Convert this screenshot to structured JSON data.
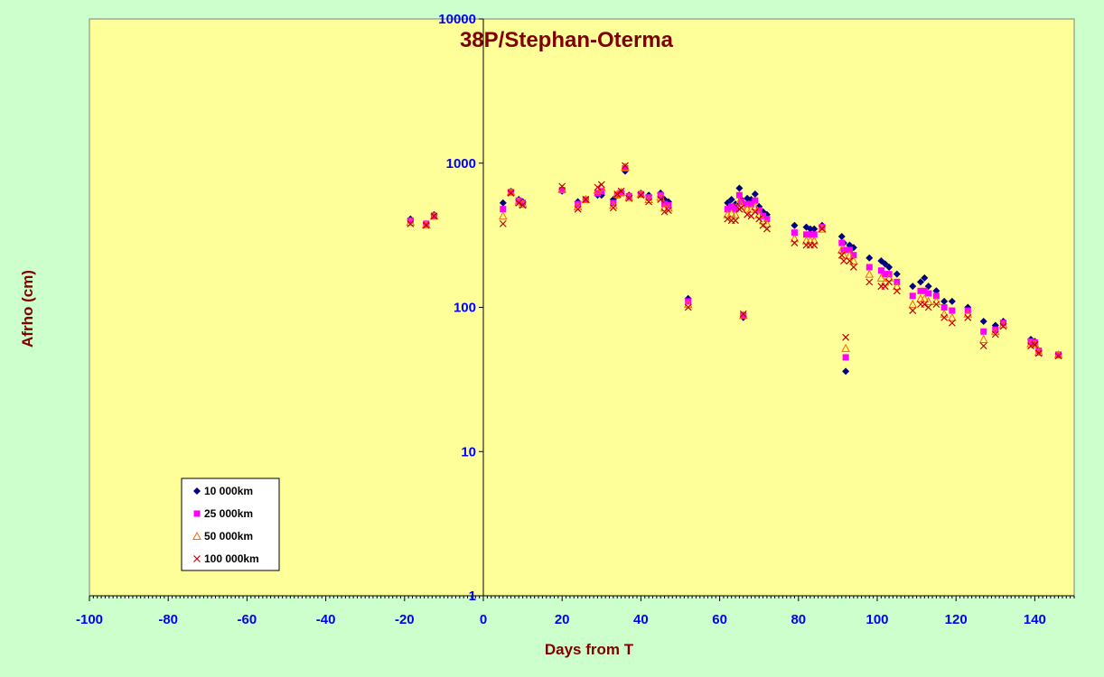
{
  "colors": {
    "page_bg": "#ccffcc",
    "plot_bg": "#ffff99",
    "axis_text": "#0000ff",
    "title_text": "#800000",
    "series_10k": "#000080",
    "series_25k": "#ff00ff",
    "series_50k": "#ff6600",
    "series_100k": "#c00000"
  },
  "chart_data": {
    "type": "scatter",
    "title": "38P/Stephan-Oterma",
    "xlabel": "Days from T",
    "ylabel": "Afrho (cm)",
    "xlim": [
      -100,
      150
    ],
    "ylim": [
      1,
      10000
    ],
    "y_scale": "log",
    "x_ticks": [
      "-100",
      "-80",
      "-60",
      "-40",
      "-20",
      "0",
      "20",
      "40",
      "60",
      "80",
      "100",
      "120",
      "140"
    ],
    "y_ticks": [
      "1",
      "10",
      "100",
      "1000",
      "10000"
    ],
    "grid": false,
    "legend_position": "bottom-left",
    "series": [
      {
        "name": "10 000km",
        "marker": "diamond",
        "color": "#000080",
        "x": [
          -18.5,
          -14.5,
          -12.5,
          5,
          7,
          9,
          10,
          20,
          24,
          26,
          29,
          30,
          33,
          34,
          35,
          36,
          37,
          40,
          42,
          45,
          46,
          47,
          52,
          62,
          63,
          64,
          65,
          65.5,
          66,
          67,
          68,
          69,
          70,
          71,
          72,
          79,
          82,
          83,
          84,
          86,
          91,
          91.5,
          92,
          93,
          94,
          98,
          101,
          102,
          103,
          105,
          109,
          111,
          112,
          113,
          115,
          117,
          119,
          123,
          127,
          130,
          132,
          139,
          140,
          141,
          146
        ],
        "y": [
          410,
          380,
          440,
          530,
          640,
          560,
          540,
          640,
          540,
          560,
          600,
          600,
          560,
          600,
          630,
          880,
          600,
          620,
          600,
          620,
          560,
          540,
          115,
          530,
          560,
          520,
          670,
          560,
          85,
          570,
          560,
          610,
          500,
          460,
          440,
          370,
          360,
          350,
          350,
          370,
          310,
          280,
          36,
          270,
          260,
          220,
          210,
          200,
          190,
          170,
          140,
          150,
          160,
          140,
          130,
          110,
          110,
          100,
          80,
          75,
          80,
          60,
          58,
          50,
          47
        ],
        "xlim_note": ""
      },
      {
        "name": "25 000km",
        "marker": "square",
        "color": "#ff00ff",
        "x": [
          -18.5,
          -14.5,
          -12.5,
          5,
          7,
          9,
          10,
          20,
          24,
          26,
          29,
          30,
          33,
          34,
          35,
          36,
          37,
          40,
          42,
          45,
          46,
          47,
          52,
          62,
          63,
          64,
          65,
          65.5,
          66,
          67,
          68,
          69,
          70,
          71,
          72,
          79,
          82,
          83,
          84,
          86,
          91,
          91.5,
          92,
          93,
          94,
          98,
          101,
          102,
          103,
          105,
          109,
          111,
          112,
          113,
          115,
          117,
          119,
          123,
          127,
          130,
          132,
          139,
          140,
          141,
          146
        ],
        "y": [
          400,
          380,
          430,
          480,
          630,
          550,
          530,
          650,
          520,
          560,
          620,
          640,
          530,
          600,
          620,
          920,
          590,
          610,
          580,
          600,
          520,
          510,
          110,
          480,
          500,
          480,
          600,
          540,
          88,
          520,
          520,
          550,
          470,
          430,
          410,
          330,
          320,
          320,
          320,
          360,
          280,
          250,
          45,
          250,
          230,
          190,
          180,
          170,
          170,
          150,
          120,
          130,
          130,
          125,
          120,
          100,
          95,
          95,
          68,
          70,
          78,
          58,
          57,
          50,
          47
        ]
      },
      {
        "name": "50 000km",
        "marker": "triangle",
        "color": "#ff6600",
        "x": [
          -18.5,
          -14.5,
          -12.5,
          5,
          7,
          9,
          10,
          20,
          24,
          26,
          29,
          30,
          33,
          34,
          35,
          36,
          37,
          40,
          42,
          45,
          46,
          47,
          52,
          62,
          63,
          64,
          65,
          65.5,
          66,
          67,
          68,
          69,
          70,
          71,
          72,
          79,
          82,
          83,
          84,
          86,
          91,
          91.5,
          92,
          93,
          94,
          98,
          101,
          102,
          103,
          105,
          109,
          111,
          112,
          113,
          115,
          117,
          119,
          123,
          127,
          130,
          132,
          139,
          140,
          141,
          146
        ],
        "y": [
          390,
          375,
          430,
          430,
          630,
          540,
          520,
          660,
          500,
          560,
          650,
          680,
          510,
          610,
          630,
          940,
          580,
          610,
          560,
          580,
          490,
          490,
          105,
          440,
          450,
          440,
          540,
          510,
          88,
          480,
          480,
          500,
          440,
          400,
          380,
          300,
          290,
          290,
          290,
          350,
          250,
          230,
          52,
          230,
          210,
          170,
          160,
          150,
          160,
          140,
          105,
          115,
          115,
          110,
          110,
          90,
          85,
          90,
          60,
          68,
          76,
          56,
          56,
          49,
          47
        ]
      },
      {
        "name": "100 000km",
        "marker": "cross",
        "color": "#c00000",
        "x": [
          -18.5,
          -14.5,
          -12.5,
          5,
          7,
          9,
          10,
          20,
          24,
          26,
          29,
          30,
          33,
          34,
          35,
          36,
          37,
          40,
          42,
          45,
          46,
          47,
          52,
          62,
          63,
          64,
          65,
          65.5,
          66,
          67,
          68,
          69,
          70,
          71,
          72,
          79,
          82,
          83,
          84,
          86,
          91,
          91.5,
          92,
          93,
          94,
          98,
          101,
          102,
          103,
          105,
          109,
          111,
          112,
          113,
          115,
          117,
          119,
          123,
          127,
          130,
          132,
          139,
          140,
          141,
          146
        ],
        "y": [
          380,
          370,
          430,
          380,
          620,
          530,
          510,
          690,
          480,
          560,
          680,
          710,
          490,
          610,
          640,
          960,
          570,
          600,
          540,
          560,
          460,
          470,
          100,
          410,
          400,
          400,
          480,
          490,
          90,
          440,
          430,
          460,
          410,
          370,
          350,
          280,
          270,
          270,
          270,
          350,
          230,
          210,
          62,
          210,
          190,
          150,
          140,
          140,
          150,
          130,
          95,
          105,
          105,
          100,
          105,
          85,
          78,
          85,
          54,
          65,
          74,
          54,
          55,
          48,
          46
        ]
      }
    ]
  }
}
